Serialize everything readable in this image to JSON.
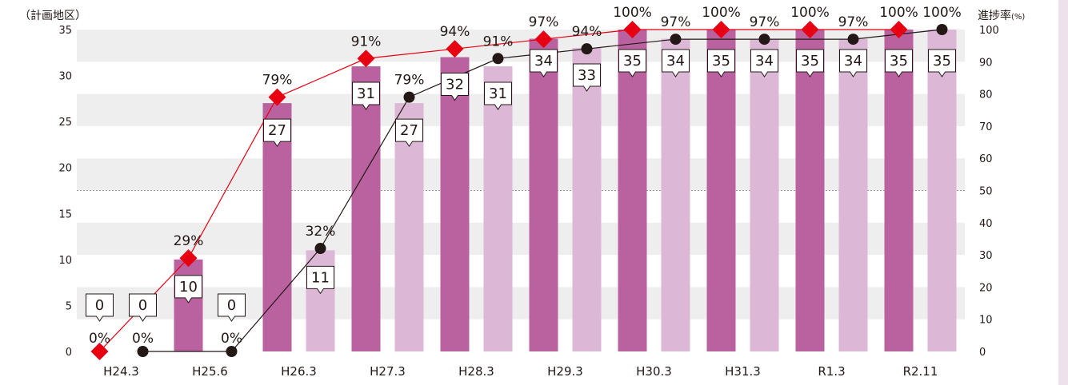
{
  "chart_data": {
    "type": "bar",
    "left_axis_title": "（計画地区）",
    "right_axis_title": "進捗率",
    "right_axis_unit": "(%)",
    "categories": [
      "H24.3",
      "H25.6",
      "H26.3",
      "H27.3",
      "H28.3",
      "H29.3",
      "H30.3",
      "H31.3",
      "R1.3",
      "R2.11"
    ],
    "ylim_left": [
      0,
      35
    ],
    "yticks_left": [
      0,
      5,
      10,
      15,
      20,
      25,
      30,
      35
    ],
    "ylim_right": [
      0,
      100
    ],
    "yticks_right": [
      0,
      10,
      20,
      30,
      40,
      50,
      60,
      70,
      80,
      90,
      100
    ],
    "reference_line_right": 50,
    "grid_bands": true,
    "series": [
      {
        "kind": "bar",
        "color": "#b9629f",
        "values": [
          0,
          10,
          27,
          31,
          32,
          34,
          35,
          35,
          35,
          35
        ],
        "labels": [
          "0",
          "10",
          "27",
          "31",
          "32",
          "34",
          "35",
          "35",
          "35",
          "35"
        ]
      },
      {
        "kind": "bar",
        "color": "#ddb8d6",
        "values": [
          0,
          0,
          11,
          27,
          31,
          33,
          34,
          34,
          34,
          35
        ],
        "labels": [
          "0",
          "0",
          "11",
          "27",
          "31",
          "33",
          "34",
          "34",
          "34",
          "35"
        ]
      },
      {
        "kind": "line",
        "marker": "diamond",
        "color": "#e60012",
        "line_color": "#e60012",
        "values": [
          0,
          29,
          79,
          91,
          94,
          97,
          100,
          100,
          100,
          100
        ],
        "labels": [
          "0%",
          "29%",
          "79%",
          "91%",
          "94%",
          "97%",
          "100%",
          "100%",
          "100%",
          "100%"
        ]
      },
      {
        "kind": "line",
        "marker": "circle",
        "color": "#231815",
        "line_color": "#231815",
        "values": [
          0,
          0,
          32,
          79,
          91,
          94,
          97,
          97,
          97,
          100
        ],
        "labels": [
          "0%",
          "0%",
          "32%",
          "79%",
          "91%",
          "94%",
          "97%",
          "97%",
          "97%",
          "100%"
        ]
      }
    ]
  },
  "colors": {
    "band": "#eeeeee",
    "reference_line": "#999999",
    "side_strip": "#efe1ec",
    "text": "#231815"
  }
}
